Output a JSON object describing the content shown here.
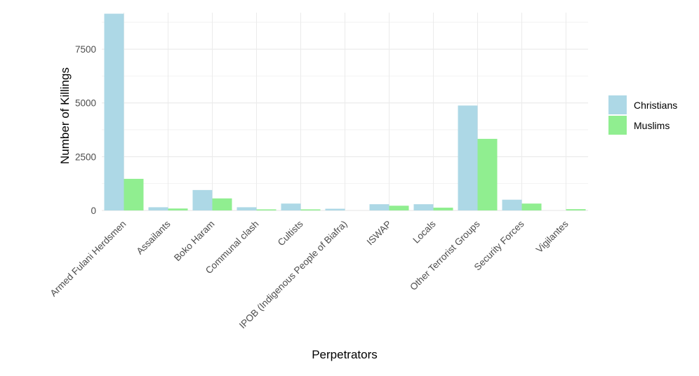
{
  "chart_data": {
    "type": "bar",
    "title": "",
    "xlabel": "Perpetrators",
    "ylabel": "Number of Killings",
    "ylim": [
      0,
      9200
    ],
    "yticks": [
      0,
      2500,
      5000,
      7500
    ],
    "ytick_labels": [
      "0",
      "2500",
      "5000",
      "7500"
    ],
    "grid": true,
    "legend_position": "right",
    "categories": [
      "Armed Fulani Herdsmen",
      "Assailants",
      "Boko Haram",
      "Communal clash",
      "Cultists",
      "IPOB (Indigenous People of Biafra)",
      "ISWAP",
      "Locals",
      "Other Terrorist Groups",
      "Security Forces",
      "Vigilantes"
    ],
    "series": [
      {
        "name": "Christians",
        "color": "#ADD8E6",
        "values": [
          9150,
          150,
          950,
          150,
          320,
          80,
          290,
          290,
          4880,
          500,
          0
        ]
      },
      {
        "name": "Muslims",
        "color": "#90EE90",
        "values": [
          1470,
          90,
          560,
          50,
          50,
          0,
          220,
          130,
          3330,
          320,
          60
        ]
      }
    ]
  }
}
